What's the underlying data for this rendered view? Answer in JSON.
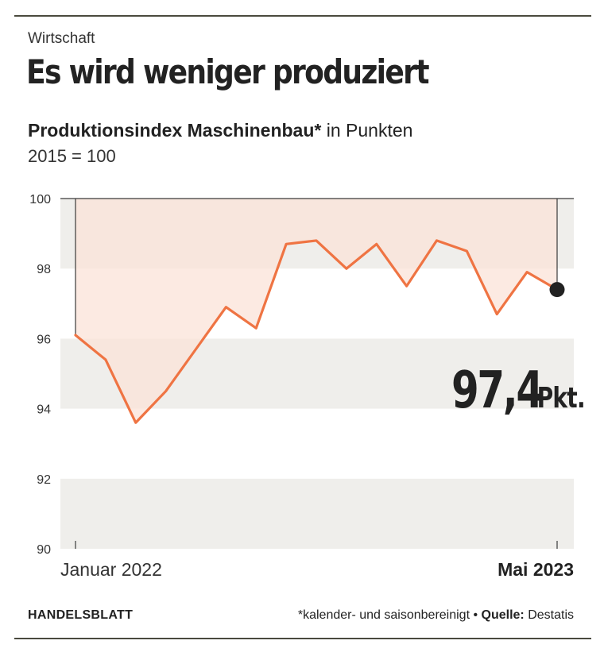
{
  "header": {
    "kicker": "Wirtschaft",
    "headline": "Es wird weniger produziert",
    "subtitle_bold": "Produktionsindex Maschinenbau*",
    "subtitle_rest": " in Punkten",
    "basis": "2015 = 100"
  },
  "chart_data": {
    "type": "line",
    "title": "Produktionsindex Maschinenbau*",
    "ylabel": "in Punkten",
    "ylim": [
      90,
      100
    ],
    "yticks": [
      "100",
      "98",
      "96",
      "94",
      "92",
      "90"
    ],
    "x_tick_labels": [
      "Januar 2022",
      "Mai 2023"
    ],
    "reference_value": 100,
    "series": [
      {
        "values": [
          96.1,
          95.4,
          93.6,
          94.5,
          95.7,
          96.9,
          96.3,
          98.7,
          98.8,
          98.0,
          98.7,
          97.5,
          98.8,
          98.5,
          96.7,
          97.9,
          97.4
        ]
      }
    ],
    "annotation": {
      "value": "97,4",
      "unit": "Pkt."
    },
    "colors": {
      "line": "#ef7443",
      "fill": "#fbe3d8",
      "band": "#efeeeb",
      "dot": "#222222"
    }
  },
  "footer": {
    "brand": "HANDELSBLATT",
    "note": "*kalender- und saisonbereinigt",
    "separator": " • ",
    "source_label": "Quelle:",
    "source_value": " Destatis"
  }
}
